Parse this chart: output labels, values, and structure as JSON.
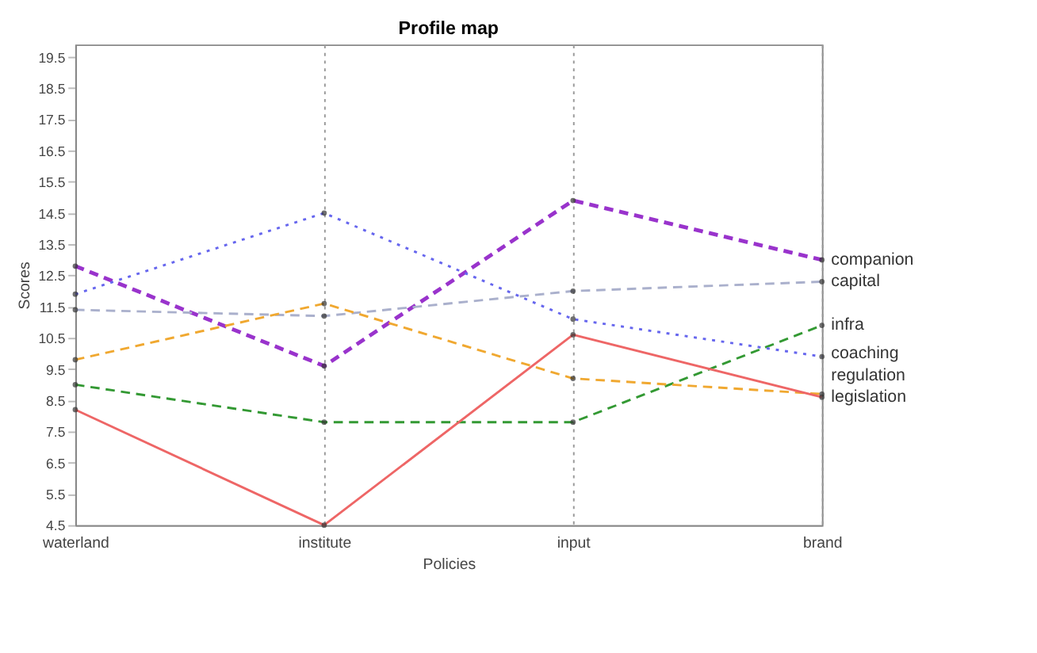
{
  "chart_data": {
    "type": "line",
    "title": "Profile map",
    "xlabel": "Policies",
    "ylabel": "Scores",
    "categories": [
      "waterland",
      "institute",
      "input",
      "brand"
    ],
    "ylim": [
      4.5,
      19.9
    ],
    "yticks": [
      4.5,
      5.5,
      6.5,
      7.5,
      8.5,
      9.5,
      10.5,
      11.5,
      12.5,
      13.5,
      14.5,
      15.5,
      16.5,
      17.5,
      18.5,
      19.5
    ],
    "grid": "x",
    "marker": "circle",
    "series": [
      {
        "name": "companion",
        "color": "#9933cc",
        "line_style": "dashed",
        "values": [
          12.8,
          9.6,
          14.9,
          13.0
        ]
      },
      {
        "name": "capital",
        "color": "#aab0cc",
        "line_style": "dashed",
        "values": [
          11.4,
          11.2,
          12.0,
          12.3
        ]
      },
      {
        "name": "infra",
        "color": "#339933",
        "line_style": "dashed",
        "values": [
          9.0,
          7.8,
          7.8,
          10.9
        ]
      },
      {
        "name": "coaching",
        "color": "#6666ee",
        "line_style": "dotted",
        "values": [
          11.9,
          14.5,
          11.1,
          9.9
        ]
      },
      {
        "name": "regulation",
        "color": "#f0a830",
        "line_style": "dashed",
        "values": [
          9.8,
          11.6,
          9.2,
          8.7
        ]
      },
      {
        "name": "legislation",
        "color": "#ee6666",
        "line_style": "solid",
        "values": [
          8.2,
          4.5,
          10.6,
          8.6
        ]
      }
    ]
  }
}
